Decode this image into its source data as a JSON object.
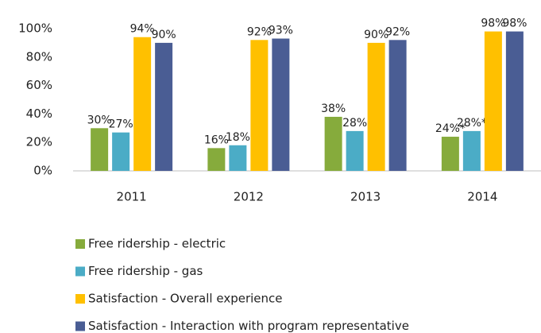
{
  "chart_data": {
    "type": "bar",
    "categories": [
      "2011",
      "2012",
      "2013",
      "2014"
    ],
    "series": [
      {
        "name": "Free ridership - electric",
        "color": "#86ab3c",
        "values": [
          30,
          16,
          38,
          24
        ],
        "value_labels": [
          "30%",
          "16%",
          "38%",
          "24%*"
        ]
      },
      {
        "name": "Free ridership - gas",
        "color": "#4bacc6",
        "values": [
          27,
          18,
          28,
          28
        ],
        "value_labels": [
          "27%",
          "18%",
          "28%",
          "28%*"
        ]
      },
      {
        "name": "Satisfaction - Overall experience",
        "color": "#ffc000",
        "values": [
          94,
          92,
          90,
          98
        ],
        "value_labels": [
          "94%",
          "92%",
          "90%",
          "98%"
        ]
      },
      {
        "name": "Satisfaction - Interaction with program representative",
        "color": "#4a5d94",
        "values": [
          90,
          93,
          92,
          98
        ],
        "value_labels": [
          "90%",
          "93%",
          "92%",
          "98%"
        ]
      }
    ],
    "ylim": [
      0,
      100
    ],
    "yticks": [
      {
        "value": 0,
        "label": "0%"
      },
      {
        "value": 20,
        "label": "20%"
      },
      {
        "value": 40,
        "label": "40%"
      },
      {
        "value": 60,
        "label": "60%"
      },
      {
        "value": 80,
        "label": "80%"
      },
      {
        "value": 100,
        "label": "100%"
      }
    ],
    "grid": false,
    "legend": "bottom"
  }
}
